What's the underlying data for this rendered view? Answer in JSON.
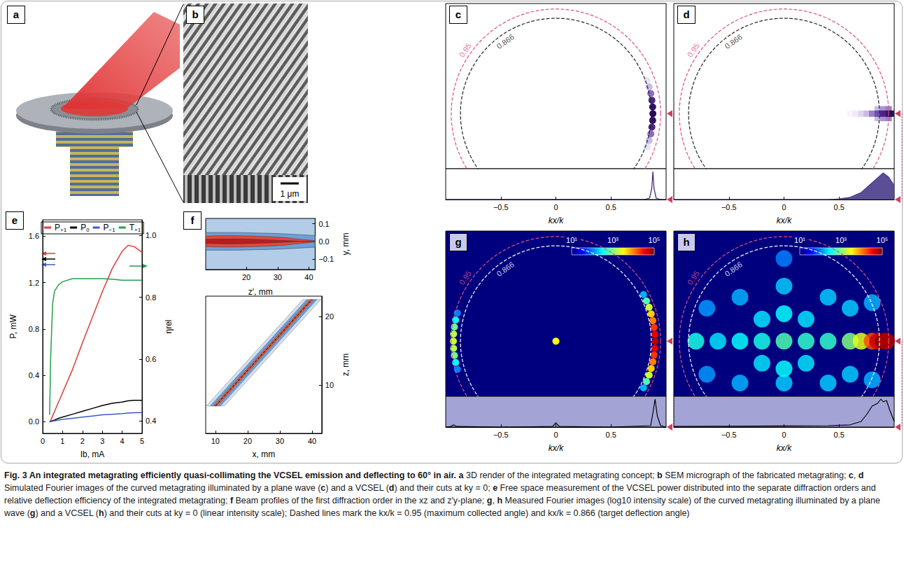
{
  "caption": {
    "title": "Fig. 3 An integrated metagrating efficiently quasi-collimating the VCSEL emission and deflecting to 60° in air.",
    "items": [
      [
        "a",
        " 3D render of the integrated metagrating concept; "
      ],
      [
        "b",
        " SEM micrograph of the fabricated metagrating; "
      ],
      [
        "c",
        ", "
      ],
      [
        "d",
        " Simulated Fourier images of the curved metagrating illuminated by a plane wave ("
      ],
      [
        "c",
        ") and a VCSEL ("
      ],
      [
        "d",
        ") and their cuts at ky = 0; "
      ],
      [
        "e",
        " Free space measurement of the VCSEL power distributed into the separate diffraction orders and relative deflection efficiency of the integrated metagrating; "
      ],
      [
        "f",
        " Beam profiles of the first diffraction order in the xz and z′y-plane; "
      ],
      [
        "g",
        ", "
      ],
      [
        "h",
        " Measured Fourier images (log10 intensity scale) of the curved metagrating illuminated by a plane wave ("
      ],
      [
        "g",
        ") and a VCSEL ("
      ],
      [
        "h",
        ") and their cuts at ky = 0 (linear intensity scale); Dashed lines mark the kx/k = 0.95 (maximum collected angle) and kx/k = 0.866 (target deflection angle)"
      ]
    ]
  },
  "panel_a": {
    "letter": "a"
  },
  "panel_b": {
    "letter": "b",
    "scale_bar": "1 μm"
  },
  "chart_data": [
    {
      "panel": "e",
      "type": "line",
      "xlabel": "Ib, mA",
      "ylabel": "P, mW",
      "y2label": "ηrel",
      "xlim": [
        0,
        5
      ],
      "xticks": [
        0,
        1,
        2,
        3,
        4,
        5
      ],
      "ylim": [
        -0.1,
        1.74
      ],
      "yticks": [
        {
          "value": 0,
          "label": "0.0"
        },
        0.4,
        0.8,
        1.2,
        1.6
      ],
      "y2lim": [
        0.36,
        1.05
      ],
      "y2ticks": [
        0.4,
        0.6,
        0.8,
        {
          "value": 1,
          "label": "1.0"
        }
      ],
      "legend": "top",
      "x": [
        0.35,
        0.4,
        0.5,
        0.6,
        0.8,
        1,
        1.5,
        2,
        2.5,
        3,
        3.5,
        4,
        4.3,
        4.6,
        5
      ],
      "series": [
        {
          "name": "P+1",
          "color": "#e03a3a",
          "axis": "y",
          "values": [
            0,
            0.01,
            0.05,
            0.09,
            0.17,
            0.25,
            0.45,
            0.68,
            0.9,
            1.12,
            1.32,
            1.47,
            1.52,
            1.51,
            1.46
          ]
        },
        {
          "name": "P0",
          "color": "#000000",
          "axis": "y",
          "values": [
            0,
            0.002,
            0.01,
            0.015,
            0.03,
            0.04,
            0.065,
            0.09,
            0.115,
            0.14,
            0.16,
            0.17,
            0.18,
            0.185,
            0.185
          ]
        },
        {
          "name": "P−1",
          "color": "#3a5bc7",
          "axis": "y",
          "values": [
            0,
            0.001,
            0.005,
            0.008,
            0.015,
            0.02,
            0.03,
            0.04,
            0.05,
            0.06,
            0.065,
            0.07,
            0.075,
            0.078,
            0.08
          ]
        },
        {
          "name": "T+1",
          "color": "#22a04a",
          "axis": "y2",
          "values": [
            0.42,
            0.6,
            0.78,
            0.82,
            0.84,
            0.85,
            0.86,
            0.86,
            0.86,
            0.86,
            0.858,
            0.855,
            0.855,
            0.855,
            0.855
          ]
        }
      ]
    },
    {
      "panel": "f",
      "type": "contour",
      "subplots": [
        {
          "xlabel": "z′, mm",
          "ylabel": "y, mm",
          "xlim": [
            7,
            42
          ],
          "xticks": [
            20,
            30,
            40
          ],
          "ylim": [
            -0.16,
            0.13
          ],
          "yticks": [
            {
              "value": -0.1,
              "label": "−0.1"
            },
            {
              "value": 0,
              "label": "0.0"
            },
            0.1
          ],
          "x": [
            7,
            12,
            17,
            22,
            27,
            32,
            37,
            42
          ],
          "series": [
            {
              "color": "#6f9fd6",
              "half_width": [
                0.05,
                0.05,
                0.05,
                0.048,
                0.046,
                0.043,
                0.038,
                0.033
              ]
            },
            {
              "color": "#e8473a",
              "half_width": [
                0.03,
                0.032,
                0.032,
                0.03,
                0.027,
                0.022,
                0.012,
                0.004
              ]
            },
            {
              "color": "#b51f1f",
              "half_width": [
                0.012,
                0.014,
                0.014,
                0.012,
                0.009,
                0.005,
                0.001,
                0
              ]
            }
          ]
        },
        {
          "xlabel": "x, mm",
          "ylabel": "z, mm",
          "xlim": [
            7,
            43
          ],
          "xticks": [
            10,
            20,
            30,
            40
          ],
          "ylim": [
            3,
            23
          ],
          "yticks": [
            10,
            20
          ],
          "z": [
            7,
            9,
            11,
            13,
            15,
            17,
            19,
            21,
            22.5
          ],
          "series": [
            {
              "color": "#cfe0f2",
              "x_left": [
                7.2,
                11.06,
                14.92,
                18.78,
                22.64,
                26.5,
                30.36,
                34.22,
                37.1
              ],
              "x_right": [
                12.8,
                16.66,
                20.52,
                24.38,
                28.24,
                32.1,
                35.96,
                39.82,
                42.7
              ]
            },
            {
              "color": "#6d9bd4",
              "x_left": [
                8.4,
                12.26,
                16.12,
                19.98,
                23.84,
                27.7,
                31.56,
                35.42,
                38.3
              ],
              "x_right": [
                11.6,
                15.46,
                19.32,
                23.18,
                27.04,
                30.9,
                34.76,
                38.62,
                41.5
              ]
            },
            {
              "color": "#e35a3a",
              "x_left": [
                9.4,
                13.26,
                17.12,
                20.98,
                24.84,
                28.7,
                32.56,
                36.42,
                39.3
              ],
              "x_right": [
                10.6,
                14.46,
                18.32,
                22.18,
                26.04,
                29.9,
                33.76,
                37.62,
                40.5
              ]
            }
          ],
          "center": {
            "color": "#000000",
            "line_style": "dashed",
            "x": [
              10,
              13.86,
              17.72,
              21.58,
              25.44,
              29.3,
              33.16,
              37.02,
              39.9
            ]
          }
        }
      ]
    },
    {
      "panel": "c",
      "type": "image",
      "xlim": [
        -1,
        1
      ],
      "ylim": [
        -0.5,
        1
      ],
      "xlabel": "kx/k",
      "cut_xticks": [
        {
          "value": -0.5,
          "label": "−0.5"
        },
        0,
        0.5
      ],
      "circles": [
        {
          "r": 0.95,
          "label": "0.95",
          "color": "#e0507a"
        },
        {
          "r": 0.866,
          "label": "0.866",
          "color": "#222222"
        }
      ],
      "intensity_range": [
        0,
        1
      ],
      "spots": [
        [
          0.827,
          -0.301,
          0.15
        ],
        [
          0.846,
          -0.243,
          0.3
        ],
        [
          0.861,
          -0.183,
          0.5
        ],
        [
          0.871,
          -0.122,
          0.75
        ],
        [
          0.878,
          -0.061,
          0.95
        ],
        [
          0.88,
          0,
          1
        ],
        [
          0.878,
          0.061,
          0.95
        ],
        [
          0.871,
          0.122,
          0.75
        ],
        [
          0.861,
          0.183,
          0.5
        ],
        [
          0.846,
          0.243,
          0.3
        ],
        [
          0.827,
          0.301,
          0.15
        ]
      ],
      "cut": {
        "type": "line",
        "color": "#3b2470",
        "ylim": [
          0,
          1.1
        ],
        "x": [
          -1,
          0.8,
          0.85,
          0.87,
          0.88,
          0.89,
          0.91,
          0.95,
          1
        ],
        "values": [
          0,
          0,
          0.05,
          0.4,
          1,
          0.4,
          0.05,
          0,
          0
        ]
      }
    },
    {
      "panel": "d",
      "type": "image",
      "xlim": [
        -1,
        1
      ],
      "ylim": [
        -0.5,
        1
      ],
      "xlabel": "kx/k",
      "cut_xticks": [
        {
          "value": -0.5,
          "label": "−0.5"
        },
        0,
        0.5
      ],
      "circles": [
        {
          "r": 0.95,
          "label": "0.95",
          "color": "#e0507a"
        },
        {
          "r": 0.866,
          "label": "0.866",
          "color": "#222222"
        }
      ],
      "intensity_range": [
        0,
        1
      ],
      "spots": [
        [
          0.85,
          0.04,
          0.3
        ],
        [
          0.9,
          0.04,
          0.4
        ],
        [
          0.95,
          0.04,
          0.45
        ],
        [
          0.85,
          -0.04,
          0.3
        ],
        [
          0.9,
          -0.04,
          0.4
        ],
        [
          0.95,
          -0.04,
          0.45
        ],
        [
          0.6,
          0,
          0.05
        ],
        [
          0.65,
          0,
          0.1
        ],
        [
          0.7,
          0,
          0.2
        ],
        [
          0.75,
          0,
          0.3
        ],
        [
          0.8,
          0,
          0.45
        ],
        [
          0.85,
          0,
          0.6
        ],
        [
          0.9,
          0,
          0.75
        ],
        [
          0.95,
          0,
          0.9
        ],
        [
          0.97,
          0,
          1
        ]
      ],
      "cut": {
        "type": "area",
        "color": "#4a3a8c",
        "ylim": [
          0,
          1.1
        ],
        "x": [
          -1,
          0.4,
          0.5,
          0.6,
          0.7,
          0.8,
          0.9,
          0.95,
          1
        ],
        "values": [
          0,
          0,
          0.02,
          0.08,
          0.25,
          0.6,
          0.95,
          0.8,
          0.5
        ]
      }
    },
    {
      "panel": "g",
      "type": "image",
      "xlim": [
        -1,
        1
      ],
      "ylim": [
        -0.5,
        1
      ],
      "xlabel": "kx/k",
      "cut_xticks": [
        {
          "value": -0.5,
          "label": "−0.5"
        },
        0,
        0.5
      ],
      "circles": [
        {
          "r": 0.95,
          "label": "0.95",
          "color": "#e0507a"
        },
        {
          "r": 0.866,
          "label": "0.866",
          "color": "#ffffff"
        }
      ],
      "colorbar": {
        "range": [
          1,
          5
        ],
        "ticks": [
          {
            "value": 1,
            "label": "10¹"
          },
          {
            "value": 3,
            "label": "10³"
          },
          {
            "value": 5,
            "label": "10⁵"
          }
        ]
      },
      "spots": [
        [
          -0.894,
          0.256,
          2.0
        ],
        [
          -0.91,
          0.193,
          2.5
        ],
        [
          -0.921,
          0.129,
          2.9
        ],
        [
          -0.928,
          0.065,
          3.2
        ],
        [
          -0.93,
          0,
          3.3
        ],
        [
          -0.928,
          -0.065,
          3.2
        ],
        [
          -0.921,
          -0.129,
          2.9
        ],
        [
          -0.91,
          -0.193,
          2.5
        ],
        [
          -0.894,
          -0.256,
          2.0
        ],
        [
          0,
          0,
          3.5
        ],
        [
          0.795,
          -0.423,
          2.2
        ],
        [
          0.822,
          -0.366,
          2.8
        ],
        [
          0.846,
          -0.308,
          3.3
        ],
        [
          0.865,
          -0.248,
          3.7
        ],
        [
          0.88,
          -0.187,
          4.0
        ],
        [
          0.891,
          -0.125,
          4.3
        ],
        [
          0.898,
          -0.063,
          4.6
        ],
        [
          0.9,
          0,
          4.8
        ],
        [
          0.898,
          0.063,
          4.6
        ],
        [
          0.891,
          0.125,
          4.3
        ],
        [
          0.88,
          0.187,
          4.0
        ],
        [
          0.865,
          0.248,
          3.7
        ],
        [
          0.846,
          0.308,
          3.3
        ],
        [
          0.822,
          0.366,
          2.8
        ],
        [
          0.795,
          0.423,
          2.2
        ]
      ],
      "cut": {
        "type": "line",
        "color": "#000000",
        "ylim": [
          0,
          1.1
        ],
        "x": [
          -1,
          -0.95,
          -0.93,
          -0.9,
          -0.5,
          -0.03,
          0,
          0.03,
          0.5,
          0.86,
          0.88,
          0.9,
          0.92,
          0.95,
          1
        ],
        "values": [
          0,
          0.02,
          0.08,
          0.02,
          0,
          0.02,
          0.15,
          0.02,
          0,
          0.05,
          0.5,
          1,
          0.4,
          0.05,
          0
        ]
      }
    },
    {
      "panel": "h",
      "type": "image",
      "xlim": [
        -1,
        1
      ],
      "ylim": [
        -0.5,
        1
      ],
      "xlabel": "kx/k",
      "cut_xticks": [
        {
          "value": -0.5,
          "label": "−0.5"
        },
        0,
        0.5
      ],
      "circles": [
        {
          "r": 0.95,
          "label": "0.95",
          "color": "#e0507a"
        },
        {
          "r": 0.866,
          "label": "0.866",
          "color": "#ffffff"
        }
      ],
      "colorbar": {
        "range": [
          1,
          5
        ],
        "ticks": [
          {
            "value": 1,
            "label": "10¹"
          },
          {
            "value": 3,
            "label": "10³"
          },
          {
            "value": 5,
            "label": "10⁵"
          }
        ]
      },
      "spots": [
        [
          -0.4,
          0.4,
          2.2
        ],
        [
          0,
          0.5,
          2.3
        ],
        [
          0.4,
          0.4,
          2.3
        ],
        [
          -0.4,
          -0.38,
          2.2
        ],
        [
          0,
          -0.38,
          2.3
        ],
        [
          0.4,
          -0.38,
          2.3
        ],
        [
          0,
          0.25,
          2.5
        ],
        [
          0,
          -0.25,
          2.5
        ],
        [
          -0.2,
          0.2,
          2.4
        ],
        [
          0.2,
          0.2,
          2.4
        ],
        [
          -0.2,
          -0.2,
          2.4
        ],
        [
          0.2,
          -0.2,
          2.4
        ],
        [
          0.6,
          0.3,
          2.3
        ],
        [
          0.6,
          -0.3,
          2.3
        ],
        [
          -0.7,
          0.3,
          2.1
        ],
        [
          -0.7,
          -0.3,
          2.1
        ],
        [
          0,
          0.75,
          2.0
        ],
        [
          0.8,
          0.35,
          2.2
        ],
        [
          0.8,
          -0.35,
          2.2
        ],
        [
          -0.8,
          0,
          2.6
        ],
        [
          -0.6,
          0,
          2.4
        ],
        [
          -0.4,
          0,
          2.5
        ],
        [
          -0.2,
          0,
          2.6
        ],
        [
          0,
          0,
          2.8
        ],
        [
          0.2,
          0,
          2.7
        ],
        [
          0.4,
          0,
          2.7
        ],
        [
          0.6,
          0,
          3.0
        ],
        [
          0.7,
          0,
          3.4
        ],
        [
          0.8,
          0,
          4.2
        ],
        [
          0.85,
          0,
          4.7
        ],
        [
          0.9,
          0,
          5.0
        ],
        [
          0.93,
          0,
          4.8
        ]
      ],
      "cut": {
        "type": "line",
        "color": "#000000",
        "ylim": [
          0,
          1.1
        ],
        "x": [
          -1,
          -0.5,
          0,
          0.4,
          0.6,
          0.7,
          0.75,
          0.8,
          0.85,
          0.88,
          0.9,
          0.93,
          0.96,
          1
        ],
        "values": [
          0.02,
          0.03,
          0.04,
          0.05,
          0.08,
          0.2,
          0.45,
          0.75,
          0.85,
          1,
          0.9,
          0.95,
          0.6,
          0.2
        ]
      }
    }
  ]
}
